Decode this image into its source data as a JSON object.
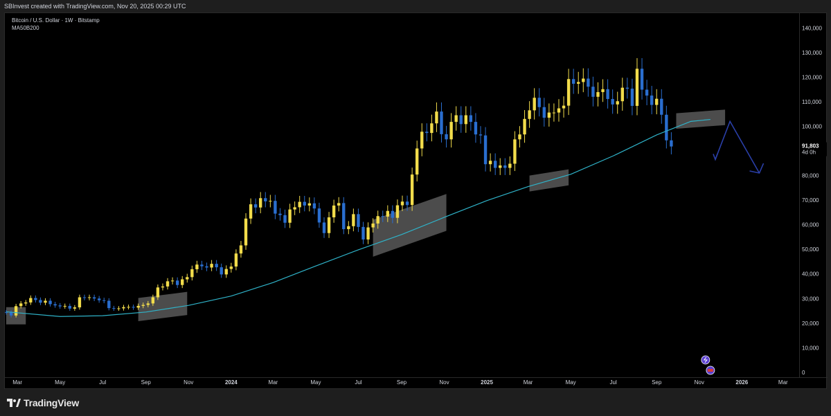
{
  "header": {
    "created_text": "SBInvest created with TradingView.com, Nov 20, 2025 00:29 UTC"
  },
  "legend": {
    "symbol_line": "Bitcoin / U.S. Dollar · 1W · Bitstamp",
    "indicator_line": "MA50B200"
  },
  "footer": {
    "brand": "TradingView"
  },
  "colors": {
    "background": "#000000",
    "bull_candle": "#f2dc4b",
    "bear_candle": "#2a6ecf",
    "moving_average": "#2fb3c9",
    "highlight_box": "#8a8a8a",
    "arrow": "#2a3fa8",
    "last_price_label_bg": "#000000"
  },
  "chart_data": {
    "type": "candlestick",
    "title": "Bitcoin / U.S. Dollar · 1W · Bitstamp",
    "timeframe": "1W",
    "exchange": "Bitstamp",
    "y_axis": {
      "range": [
        -2000,
        146000
      ],
      "ticks": [
        0,
        10000,
        20000,
        30000,
        40000,
        50000,
        60000,
        70000,
        80000,
        90000,
        100000,
        110000,
        120000,
        130000,
        140000
      ],
      "tick_labels": [
        "0",
        "10,000",
        "20,000",
        "30,000",
        "40,000",
        "50,000",
        "60,000",
        "70,000",
        "80,000",
        "90,000",
        "100,000",
        "110,000",
        "120,000",
        "130,000",
        "140,000"
      ],
      "last_price": 91803,
      "last_price_label": "91,803",
      "countdown_label": "4d 0h"
    },
    "x_axis": {
      "range": [
        "2023-02-13",
        "2026-03-23"
      ],
      "ticks": [
        {
          "date": "2023-03-01",
          "label": "Mar"
        },
        {
          "date": "2023-05-01",
          "label": "May"
        },
        {
          "date": "2023-07-01",
          "label": "Jul"
        },
        {
          "date": "2023-09-01",
          "label": "Sep"
        },
        {
          "date": "2023-11-01",
          "label": "Nov"
        },
        {
          "date": "2024-01-01",
          "label": "2024"
        },
        {
          "date": "2024-03-01",
          "label": "Mar"
        },
        {
          "date": "2024-05-01",
          "label": "May"
        },
        {
          "date": "2024-07-01",
          "label": "Jul"
        },
        {
          "date": "2024-09-01",
          "label": "Sep"
        },
        {
          "date": "2024-11-01",
          "label": "Nov"
        },
        {
          "date": "2025-01-01",
          "label": "2025"
        },
        {
          "date": "2025-03-01",
          "label": "Mar"
        },
        {
          "date": "2025-05-01",
          "label": "May"
        },
        {
          "date": "2025-07-01",
          "label": "Jul"
        },
        {
          "date": "2025-09-01",
          "label": "Sep"
        },
        {
          "date": "2025-11-01",
          "label": "Nov"
        },
        {
          "date": "2026-01-01",
          "label": "2026"
        },
        {
          "date": "2026-03-01",
          "label": "Mar"
        }
      ]
    },
    "ohlc_series": {
      "name": "Bitcoin / U.S. Dollar",
      "start_date": "2023-02-13",
      "step_days": 7,
      "close": [
        24300,
        23100,
        26900,
        28000,
        28400,
        30200,
        29400,
        28300,
        29100,
        27700,
        27200,
        26800,
        27000,
        25900,
        26400,
        30500,
        30300,
        30500,
        30000,
        29300,
        29100,
        26100,
        25900,
        26000,
        26500,
        26600,
        26300,
        27000,
        27400,
        28000,
        30500,
        34500,
        34900,
        37000,
        37300,
        35500,
        37800,
        38700,
        41900,
        43800,
        43100,
        42600,
        44100,
        42700,
        39800,
        42000,
        43000,
        48300,
        51600,
        62500,
        68300,
        67000,
        70800,
        69500,
        69700,
        64500,
        63900,
        60800,
        66200,
        67100,
        69300,
        67800,
        68700,
        66600,
        60900,
        56600,
        63000,
        67800,
        68800,
        58200,
        59400,
        64300,
        59100,
        54000,
        58900,
        60500,
        63500,
        63300,
        65600,
        62800,
        67900,
        69400,
        68000,
        80400,
        91000,
        97800,
        97300,
        101200,
        106000,
        96800,
        94700,
        101800,
        104500,
        100900,
        104500,
        101800,
        96700,
        96300,
        84600,
        86000,
        83100,
        84100,
        83100,
        84800,
        94700,
        96700,
        103000,
        106500,
        111600,
        107800,
        103500,
        105600,
        105600,
        107300,
        108400,
        119200,
        117300,
        118000,
        119400,
        116100,
        112000,
        113900,
        115100,
        111100,
        108900,
        110200,
        115700,
        115300,
        108300,
        123400,
        114900,
        112500,
        108700,
        111200,
        104700,
        94300,
        91800
      ],
      "open": [
        24500,
        24300,
        23100,
        26900,
        28000,
        28400,
        30200,
        29400,
        28300,
        29100,
        27700,
        27200,
        26800,
        27000,
        25900,
        26400,
        30500,
        30300,
        30500,
        30000,
        29300,
        29100,
        26100,
        25900,
        26000,
        26500,
        26600,
        26300,
        27000,
        27400,
        28000,
        30500,
        34500,
        34900,
        37000,
        37300,
        35500,
        37800,
        38700,
        41900,
        43800,
        43100,
        42600,
        44100,
        42700,
        39800,
        42000,
        43000,
        48300,
        51600,
        62500,
        68300,
        67000,
        70800,
        69500,
        69700,
        64500,
        63900,
        60800,
        66200,
        67100,
        69300,
        67800,
        68700,
        66600,
        60900,
        56600,
        63000,
        67800,
        68800,
        58200,
        59400,
        64300,
        59100,
        54000,
        58900,
        60500,
        63500,
        63300,
        65600,
        62800,
        67900,
        69400,
        68000,
        80400,
        91000,
        97800,
        97300,
        101200,
        106000,
        96800,
        94700,
        101800,
        104500,
        100900,
        104500,
        101800,
        96700,
        96300,
        84600,
        86000,
        83100,
        84100,
        83100,
        84800,
        94700,
        96700,
        103000,
        106500,
        111600,
        107800,
        103500,
        105600,
        105600,
        107300,
        108400,
        119200,
        117300,
        118000,
        119400,
        116100,
        112000,
        113900,
        115100,
        111100,
        108900,
        110200,
        115700,
        115300,
        108300,
        123400,
        114900,
        112500,
        108700,
        111200,
        104700,
        94300
      ]
    },
    "moving_average": {
      "name": "MA50B200",
      "points": [
        {
          "date": "2023-02-13",
          "value": 24600
        },
        {
          "date": "2023-05-01",
          "value": 22700
        },
        {
          "date": "2023-07-01",
          "value": 23000
        },
        {
          "date": "2023-09-01",
          "value": 24500
        },
        {
          "date": "2023-11-01",
          "value": 27200
        },
        {
          "date": "2024-01-01",
          "value": 31000
        },
        {
          "date": "2024-03-01",
          "value": 36500
        },
        {
          "date": "2024-05-01",
          "value": 43200
        },
        {
          "date": "2024-07-01",
          "value": 49800
        },
        {
          "date": "2024-09-01",
          "value": 56000
        },
        {
          "date": "2024-11-01",
          "value": 63000
        },
        {
          "date": "2025-01-01",
          "value": 69800
        },
        {
          "date": "2025-03-01",
          "value": 75500
        },
        {
          "date": "2025-05-01",
          "value": 80500
        },
        {
          "date": "2025-07-01",
          "value": 88000
        },
        {
          "date": "2025-09-01",
          "value": 96500
        },
        {
          "date": "2025-10-20",
          "value": 102000
        },
        {
          "date": "2025-11-17",
          "value": 102800
        }
      ]
    },
    "highlight_zones": [
      {
        "start": "2023-02-13",
        "end": "2023-03-13",
        "low": 19500,
        "high": 26500,
        "tilt": 1
      },
      {
        "start": "2023-08-21",
        "end": "2023-10-30",
        "low": 20800,
        "high": 30200,
        "tilt": 2500
      },
      {
        "start": "2024-07-22",
        "end": "2024-11-04",
        "low": 47000,
        "high": 62000,
        "tilt": 10500
      },
      {
        "start": "2025-03-03",
        "end": "2025-04-28",
        "low": 73500,
        "high": 80000,
        "tilt": 2500
      },
      {
        "start": "2025-09-29",
        "end": "2025-12-08",
        "low": 99000,
        "high": 105300,
        "tilt": 1500
      }
    ],
    "projection_arrow": {
      "points": [
        {
          "date": "2025-11-24",
          "value": 86500
        },
        {
          "date": "2025-12-15",
          "value": 102000
        },
        {
          "date": "2026-01-26",
          "value": 81000
        }
      ]
    },
    "event_markers": [
      {
        "date": "2025-11-10",
        "icon": "lightning-icon"
      },
      {
        "date": "2025-11-17",
        "icon": "us-flag-icon"
      }
    ]
  }
}
